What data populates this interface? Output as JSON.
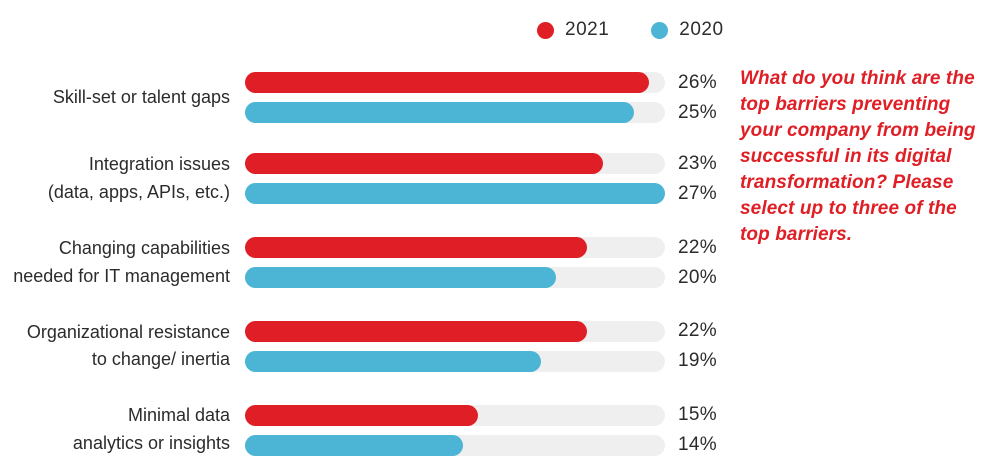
{
  "legend": {
    "items": [
      {
        "label": "2021",
        "color": "#e01e25"
      },
      {
        "label": "2020",
        "color": "#4cb4d5"
      }
    ]
  },
  "chart_data": {
    "type": "bar",
    "orientation": "horizontal",
    "title": "",
    "xlabel": "",
    "ylabel": "",
    "xlim": [
      0,
      27
    ],
    "value_suffix": "%",
    "track_color": "#efefef",
    "legend_position": "top",
    "categories": [
      "Skill-set or talent gaps",
      "Integration issues\n(data, apps, APIs, etc.)",
      "Changing capabilities\nneeded for IT management",
      "Organizational resistance\nto change/ inertia",
      "Minimal data\nanalytics or insights"
    ],
    "series": [
      {
        "name": "2021",
        "color": "#e01e25",
        "values": [
          26,
          23,
          22,
          22,
          15
        ]
      },
      {
        "name": "2020",
        "color": "#4cb4d5",
        "values": [
          25,
          27,
          20,
          19,
          14
        ]
      }
    ]
  },
  "annotation": {
    "text": "What do you think are the\ntop barriers preventing\nyour company from being\nsuccessful in its digital\ntransformation? Please\nselect up to three of the\ntop barriers.",
    "color": "#e01e25"
  }
}
